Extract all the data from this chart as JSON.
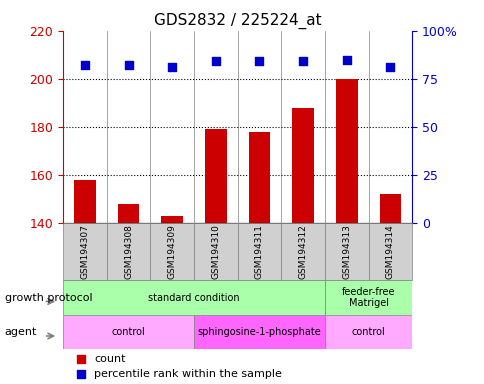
{
  "title": "GDS2832 / 225224_at",
  "samples": [
    "GSM194307",
    "GSM194308",
    "GSM194309",
    "GSM194310",
    "GSM194311",
    "GSM194312",
    "GSM194313",
    "GSM194314"
  ],
  "counts": [
    158,
    148,
    143,
    179,
    178,
    188,
    200,
    152
  ],
  "percentile_ranks": [
    82,
    82,
    81,
    84,
    84,
    84,
    85,
    81
  ],
  "ylim_left": [
    140,
    220
  ],
  "ylim_right": [
    0,
    100
  ],
  "yticks_left": [
    140,
    160,
    180,
    200,
    220
  ],
  "yticks_right": [
    0,
    25,
    50,
    75,
    100
  ],
  "ytick_labels_right": [
    "0",
    "25",
    "50",
    "75",
    "100%"
  ],
  "bar_color": "#cc0000",
  "dot_color": "#0000cc",
  "bar_width": 0.5,
  "growth_protocol_groups": [
    {
      "label": "standard condition",
      "start": 0,
      "end": 6,
      "color": "#aaffaa"
    },
    {
      "label": "feeder-free\nMatrigel",
      "start": 6,
      "end": 8,
      "color": "#aaffaa"
    }
  ],
  "agent_groups": [
    {
      "label": "control",
      "start": 0,
      "end": 3,
      "color": "#ffaaff"
    },
    {
      "label": "sphingosine-1-phosphate",
      "start": 3,
      "end": 6,
      "color": "#ff88ff"
    },
    {
      "label": "control",
      "start": 6,
      "end": 8,
      "color": "#ffaaff"
    }
  ],
  "legend_items": [
    {
      "label": "count",
      "color": "#cc0000",
      "marker": "s"
    },
    {
      "label": "percentile rank within the sample",
      "color": "#0000cc",
      "marker": "s"
    }
  ],
  "grid_color": "#000000",
  "axis_label_color_left": "#cc0000",
  "axis_label_color_right": "#0000cc"
}
